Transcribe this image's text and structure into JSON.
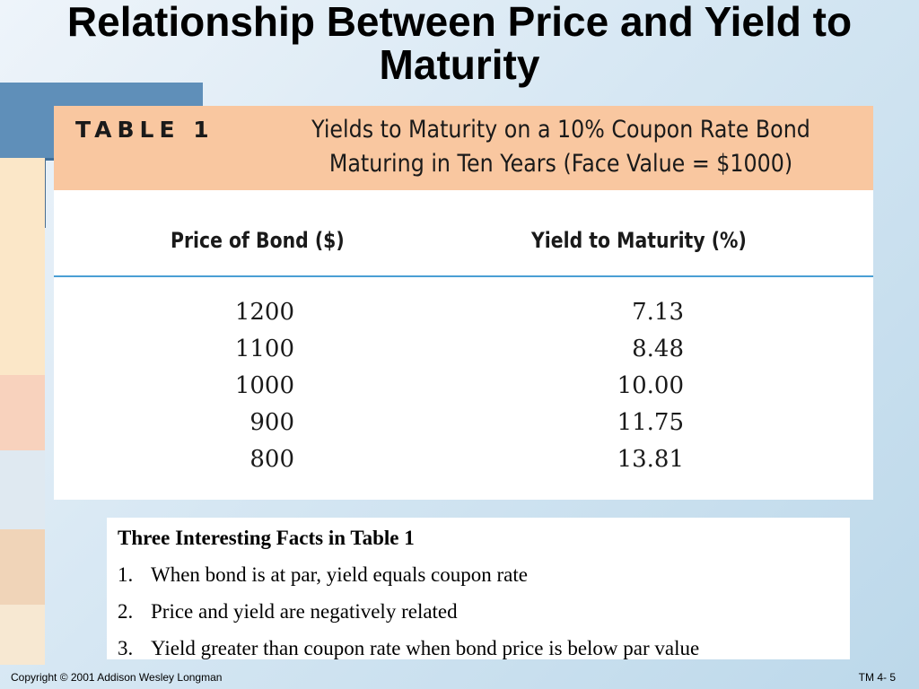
{
  "slide": {
    "title": "Relationship Between Price and Yield to Maturity"
  },
  "table": {
    "label": "TABLE 1",
    "caption": "Yields to Maturity on a 10% Coupon Rate Bond Maturing in Ten Years (Face Value = $1000)",
    "columns": [
      "Price of Bond ($)",
      "Yield to Maturity (%)"
    ],
    "rows": [
      {
        "price": "1200",
        "yield": "7.13"
      },
      {
        "price": "1100",
        "yield": "8.48"
      },
      {
        "price": "1000",
        "yield": "10.00"
      },
      {
        "price": "900",
        "yield": "11.75"
      },
      {
        "price": "800",
        "yield": "13.81"
      }
    ],
    "header_color": "#f9c7a0",
    "rule_color": "#4a9fd4"
  },
  "facts": {
    "title": "Three Interesting Facts in Table 1",
    "items": [
      {
        "num": "1.",
        "text": "When bond is at par, yield equals coupon rate"
      },
      {
        "num": "2.",
        "text": "Price and yield are negatively related"
      },
      {
        "num": "3.",
        "text": "Yield greater than coupon rate when bond price is below par value"
      }
    ]
  },
  "footer": {
    "copyright": "Copyright © 2001 Addison Wesley Longman",
    "page": "TM 4- 5"
  }
}
